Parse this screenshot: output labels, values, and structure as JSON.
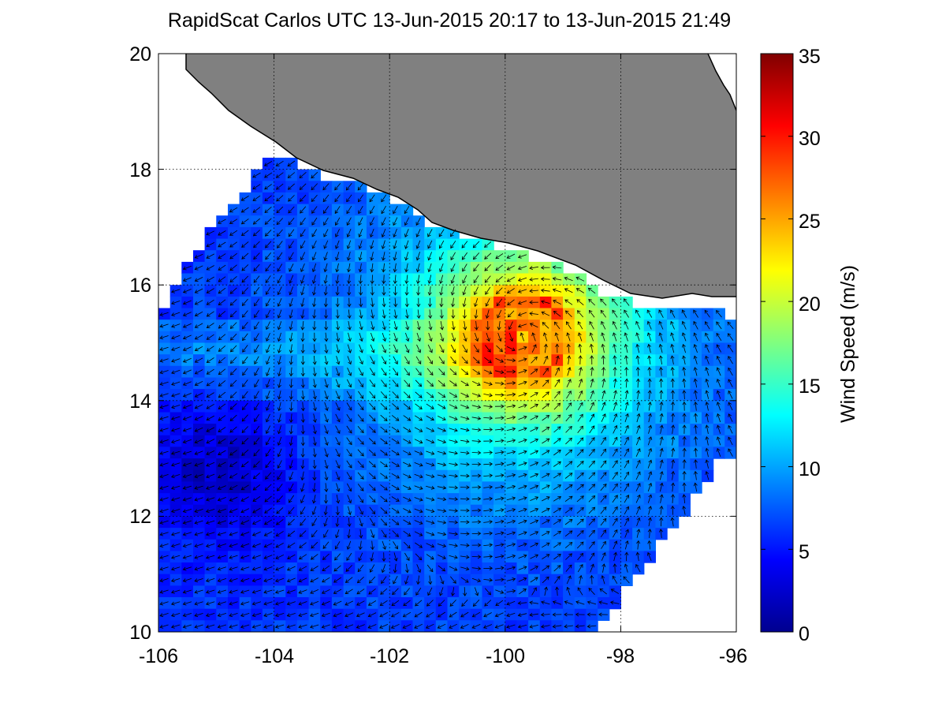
{
  "title": "RapidScat Carlos UTC 13-Jun-2015 20:17 to 13-Jun-2015 21:49",
  "map": {
    "x_ticks": [
      "-106",
      "-104",
      "-102",
      "-100",
      "-98",
      "-96"
    ],
    "y_ticks": [
      "20",
      "18",
      "16",
      "14",
      "12",
      "10"
    ],
    "x_range": [
      -106,
      -96
    ],
    "y_range": [
      10,
      20
    ],
    "land_color": "#808080",
    "no_data_color": "#ffffff",
    "storm_center": {
      "lon": -99.7,
      "lat": 15.1
    },
    "grid": "dotted"
  },
  "colorbar": {
    "label": "Wind Speed (m/s)",
    "ticks": [
      "35",
      "30",
      "25",
      "20",
      "15",
      "10",
      "5",
      "0"
    ],
    "range": [
      0,
      35
    ],
    "colormap": "jet"
  }
}
